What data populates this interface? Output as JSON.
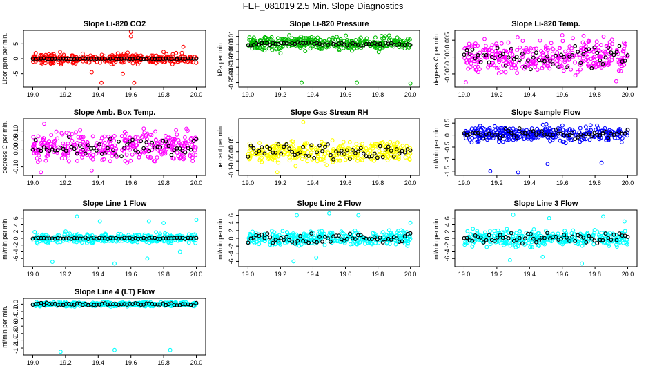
{
  "title": "FEF_081019  2.5 Min. Slope Diagnostics",
  "chart_data": [
    {
      "type": "scatter",
      "title": "Slope Li-820 CO2",
      "ylabel": "Licor ppm per min.",
      "color": "#ff0000",
      "xlim": [
        18.96,
        20.04
      ],
      "ylim": [
        -9,
        9
      ],
      "xticks": [
        19.0,
        19.2,
        19.4,
        19.6,
        19.8,
        20.0
      ],
      "xtick_labels": [
        "19.0",
        "19.2",
        "19.4",
        "19.6",
        "19.8",
        "20.0"
      ],
      "yticks": [
        -5,
        0,
        5
      ],
      "ytick_labels": [
        "-5",
        "0",
        "5"
      ],
      "series": [
        {
          "name": "all",
          "center": 0,
          "spread": 1.2
        },
        {
          "name": "selected",
          "color": "#000000",
          "center": 0,
          "spread": 0.15
        }
      ],
      "outliers": [
        [
          19.36,
          -4.5
        ],
        [
          19.42,
          -8
        ],
        [
          19.55,
          -5
        ],
        [
          19.6,
          9
        ],
        [
          19.6,
          7.5
        ],
        [
          19.62,
          -8
        ],
        [
          19.58,
          2
        ],
        [
          19.92,
          4
        ]
      ]
    },
    {
      "type": "scatter",
      "title": "Slope Li-820 Pressure",
      "ylabel": "kPa per min.",
      "color": "#00bb00",
      "xlim": [
        18.96,
        20.04
      ],
      "ylim": [
        -0.054,
        0.016
      ],
      "xticks": [
        19.0,
        19.2,
        19.4,
        19.6,
        19.8,
        20.0
      ],
      "xtick_labels": [
        "19.0",
        "19.2",
        "19.4",
        "19.6",
        "19.8",
        "20.0"
      ],
      "yticks": [
        -0.05,
        -0.04,
        -0.03,
        -0.02,
        -0.01,
        0.0,
        0.01
      ],
      "ytick_labels": [
        "-0.05",
        "-0.04",
        "-0.03",
        "-0.02",
        "-0.01",
        "0.00",
        "0.01"
      ],
      "series": [
        {
          "name": "all",
          "center": 0.001,
          "spread": 0.006
        },
        {
          "name": "selected",
          "color": "#000000",
          "center": 0.0,
          "spread": 0.002
        }
      ],
      "outliers": [
        [
          19.33,
          -0.05
        ],
        [
          19.67,
          -0.05
        ],
        [
          20.0,
          -0.051
        ],
        [
          19.2,
          -0.012
        ]
      ]
    },
    {
      "type": "scatter",
      "title": "Slope Li-820 Temp.",
      "ylabel": "degrees C per min.",
      "color": "#ff00ff",
      "xlim": [
        18.96,
        20.04
      ],
      "ylim": [
        -0.0085,
        0.0075
      ],
      "xticks": [
        19.0,
        19.2,
        19.4,
        19.6,
        19.8,
        20.0
      ],
      "xtick_labels": [
        "19.0",
        "19.2",
        "19.4",
        "19.6",
        "19.8",
        "20.0"
      ],
      "yticks": [
        -0.005,
        0.0,
        0.005
      ],
      "ytick_labels": [
        "-0.005",
        "0.000",
        "0.005"
      ],
      "series": [
        {
          "name": "all",
          "center": 0,
          "spread": 0.0035
        },
        {
          "name": "selected",
          "color": "#000000",
          "center": 0,
          "spread": 0.003
        }
      ],
      "outliers": [
        [
          19.01,
          -0.0075
        ],
        [
          19.93,
          -0.0072
        ],
        [
          19.6,
          0.0065
        ]
      ]
    },
    {
      "type": "scatter",
      "title": "Slope Amb. Box Temp.",
      "ylabel": "degrees C per min.",
      "color": "#ff00ff",
      "xlim": [
        18.96,
        20.04
      ],
      "ylim": [
        -0.14,
        0.16
      ],
      "xticks": [
        19.0,
        19.2,
        19.4,
        19.6,
        19.8,
        20.0
      ],
      "xtick_labels": [
        "19.0",
        "19.2",
        "19.4",
        "19.6",
        "19.8",
        "20.0"
      ],
      "yticks": [
        -0.1,
        0.0,
        0.05,
        0.1
      ],
      "ytick_labels": [
        "-0.10",
        "0.00",
        "0.05",
        "0.10"
      ],
      "series": [
        {
          "name": "all",
          "center": 0.01,
          "spread": 0.06
        },
        {
          "name": "selected",
          "color": "#000000",
          "center": 0.01,
          "spread": 0.05
        }
      ],
      "outliers": [
        [
          19.07,
          0.14
        ],
        [
          19.05,
          -0.13
        ],
        [
          19.36,
          -0.12
        ]
      ]
    },
    {
      "type": "scatter",
      "title": "Slope Gas Stream RH",
      "ylabel": "percent per min.",
      "color": "#ffff00",
      "xlim": [
        18.96,
        20.04
      ],
      "ylim": [
        -0.12,
        0.17
      ],
      "xticks": [
        19.0,
        19.2,
        19.4,
        19.6,
        19.8,
        20.0
      ],
      "xtick_labels": [
        "19.0",
        "19.2",
        "19.4",
        "19.6",
        "19.8",
        "20.0"
      ],
      "yticks": [
        -0.1,
        -0.05,
        0.0,
        0.05
      ],
      "ytick_labels": [
        "-0.10",
        "-0.05",
        "0.00",
        "0.05"
      ],
      "series": [
        {
          "name": "all",
          "center": 0.0,
          "spread": 0.04
        },
        {
          "name": "selected",
          "color": "#000000",
          "center": 0.0,
          "spread": 0.035
        }
      ],
      "outliers": [
        [
          19.34,
          0.16
        ],
        [
          19.18,
          -0.11
        ]
      ]
    },
    {
      "type": "scatter",
      "title": "Slope Sample Flow",
      "ylabel": "ml/min per min.",
      "color": "#0000ff",
      "xlim": [
        18.96,
        20.04
      ],
      "ylim": [
        -1.62,
        0.62
      ],
      "xticks": [
        19.0,
        19.2,
        19.4,
        19.6,
        19.8,
        20.0
      ],
      "xtick_labels": [
        "19.0",
        "19.2",
        "19.4",
        "19.6",
        "19.8",
        "20.0"
      ],
      "yticks": [
        -1.5,
        -1.0,
        -0.5,
        0.0,
        0.5
      ],
      "ytick_labels": [
        "-1.5",
        "-1",
        "-0.5",
        "0",
        "0.5"
      ],
      "series": [
        {
          "name": "all",
          "center": 0.05,
          "spread": 0.22
        },
        {
          "name": "selected",
          "color": "#000000",
          "center": 0.05,
          "spread": 0.18
        }
      ],
      "outliers": [
        [
          19.16,
          -1.5
        ],
        [
          19.33,
          -1.55
        ],
        [
          19.51,
          -1.2
        ],
        [
          19.84,
          -1.15
        ]
      ]
    },
    {
      "type": "scatter",
      "title": "Slope Line 1 Flow",
      "ylabel": "ml/min per min.",
      "color": "#00ffff",
      "xlim": [
        18.96,
        20.04
      ],
      "ylim": [
        -8,
        8
      ],
      "xticks": [
        19.0,
        19.2,
        19.4,
        19.6,
        19.8,
        20.0
      ],
      "xtick_labels": [
        "19.0",
        "19.2",
        "19.4",
        "19.6",
        "19.8",
        "20.0"
      ],
      "yticks": [
        -6,
        -4,
        -2,
        0,
        2,
        4,
        6
      ],
      "ytick_labels": [
        "-6",
        "-4",
        "-2",
        "0",
        "2",
        "4",
        "6"
      ],
      "series": [
        {
          "name": "all",
          "center": 0,
          "spread": 1.0
        },
        {
          "name": "selected",
          "color": "#000000",
          "center": 0,
          "spread": 0.2
        }
      ],
      "outliers": [
        [
          19.12,
          -7
        ],
        [
          19.27,
          6.5
        ],
        [
          19.41,
          5
        ],
        [
          19.5,
          -7.5
        ],
        [
          19.7,
          -6
        ],
        [
          19.71,
          5
        ],
        [
          19.8,
          4.5
        ],
        [
          19.9,
          -4
        ],
        [
          20.0,
          5.5
        ]
      ]
    },
    {
      "type": "scatter",
      "title": "Slope Line 2 Flow",
      "ylabel": "ml/min per min.",
      "color": "#00ffff",
      "xlim": [
        18.96,
        20.04
      ],
      "ylim": [
        -7,
        7
      ],
      "xticks": [
        19.0,
        19.2,
        19.4,
        19.6,
        19.8,
        20.0
      ],
      "xtick_labels": [
        "19.0",
        "19.2",
        "19.4",
        "19.6",
        "19.8",
        "20.0"
      ],
      "yticks": [
        -6,
        -4,
        -2,
        0,
        2,
        4,
        6
      ],
      "ytick_labels": [
        "-6",
        "-4",
        "-2",
        "0",
        "2",
        "4",
        "6"
      ],
      "series": [
        {
          "name": "all",
          "center": 0,
          "spread": 1.2
        },
        {
          "name": "selected",
          "color": "#000000",
          "center": 0,
          "spread": 1.3
        }
      ],
      "outliers": [
        [
          19.28,
          -6
        ],
        [
          19.3,
          6
        ],
        [
          19.42,
          -5
        ],
        [
          19.5,
          6.5
        ],
        [
          19.68,
          6
        ],
        [
          20.0,
          4
        ]
      ]
    },
    {
      "type": "scatter",
      "title": "Slope Line 3 Flow",
      "ylabel": "ml/min per min.",
      "color": "#00ffff",
      "xlim": [
        18.96,
        20.04
      ],
      "ylim": [
        -8,
        8
      ],
      "xticks": [
        19.0,
        19.2,
        19.4,
        19.6,
        19.8,
        20.0
      ],
      "xtick_labels": [
        "19.0",
        "19.2",
        "19.4",
        "19.6",
        "19.8",
        "20.0"
      ],
      "yticks": [
        -6,
        -4,
        -2,
        0,
        2,
        4,
        6
      ],
      "ytick_labels": [
        "-6",
        "-4",
        "-2",
        "0",
        "2",
        "4",
        "6"
      ],
      "series": [
        {
          "name": "all",
          "center": 0,
          "spread": 1.5
        },
        {
          "name": "selected",
          "color": "#000000",
          "center": 0,
          "spread": 1.4
        }
      ],
      "outliers": [
        [
          19.28,
          -6.5
        ],
        [
          19.3,
          7
        ],
        [
          19.48,
          -5.5
        ],
        [
          19.52,
          6
        ],
        [
          19.72,
          -7.5
        ],
        [
          19.85,
          6.5
        ],
        [
          19.98,
          5
        ]
      ]
    },
    {
      "type": "scatter",
      "title": "Slope Line 4 (LT) Flow",
      "ylabel": "ml/min per min.",
      "color": "#00ffff",
      "xlim": [
        18.96,
        20.04
      ],
      "ylim": [
        -1.35,
        0.12
      ],
      "xticks": [
        19.0,
        19.2,
        19.4,
        19.6,
        19.8,
        20.0
      ],
      "xtick_labels": [
        "19.0",
        "19.2",
        "19.4",
        "19.6",
        "19.8",
        "20.0"
      ],
      "yticks": [
        -1.2,
        -1.0,
        -0.8,
        -0.6,
        -0.4,
        -0.2,
        0.0
      ],
      "ytick_labels": [
        "-1.2",
        "-1.0",
        "-0.8",
        "-0.6",
        "-0.4",
        "-0.2",
        "0.0"
      ],
      "series": [
        {
          "name": "all",
          "center": 0,
          "spread": 0.04
        },
        {
          "name": "selected",
          "color": "#000000",
          "center": 0,
          "spread": 0.03
        }
      ],
      "outliers": [
        [
          19.17,
          -1.3
        ],
        [
          19.5,
          -1.25
        ],
        [
          19.84,
          -1.25
        ]
      ]
    }
  ]
}
